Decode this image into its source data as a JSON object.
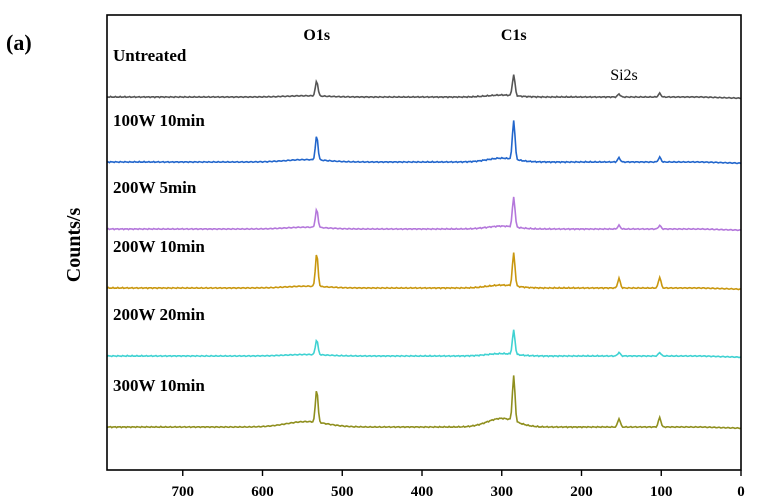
{
  "panel_label": "(a)",
  "chart_data": {
    "type": "line",
    "ylabel": "Counts/s",
    "xlabel": "",
    "xlim": [
      795,
      0
    ],
    "x_ticks": [
      700,
      600,
      500,
      400,
      300,
      200,
      100,
      0
    ],
    "x_reversed": true,
    "y_ticks_shown": false,
    "peak_labels": [
      {
        "text": "O1s",
        "x": 532
      },
      {
        "text": "C1s",
        "x": 285
      },
      {
        "text": "Si2s",
        "x": 153
      }
    ],
    "peaks_eV": [
      532,
      285,
      153,
      102
    ],
    "series": [
      {
        "name": "300W 10min",
        "color": "#8f8f1e",
        "offset": 5,
        "peak_heights": [
          0.55,
          0.75,
          0.14,
          0.16
        ],
        "shoulder": 0.18
      },
      {
        "name": "200W 20min",
        "color": "#3fd2d2",
        "offset": 4,
        "peak_heights": [
          0.25,
          0.4,
          0.06,
          0.06
        ],
        "shoulder": 0.05
      },
      {
        "name": "200W 10min",
        "color": "#c9970f",
        "offset": 3,
        "peak_heights": [
          0.55,
          0.55,
          0.16,
          0.18
        ],
        "shoulder": 0.06
      },
      {
        "name": "200W 5min",
        "color": "#b477db",
        "offset": 2,
        "peak_heights": [
          0.3,
          0.5,
          0.06,
          0.06
        ],
        "shoulder": 0.06
      },
      {
        "name": "100W 10min",
        "color": "#2266cc",
        "offset": 1,
        "peak_heights": [
          0.4,
          0.65,
          0.07,
          0.08
        ],
        "shoulder": 0.08
      },
      {
        "name": "Untreated",
        "color": "#555555",
        "offset": 0,
        "peak_heights": [
          0.25,
          0.35,
          0.05,
          0.06
        ],
        "shoulder": 0.04
      }
    ]
  }
}
